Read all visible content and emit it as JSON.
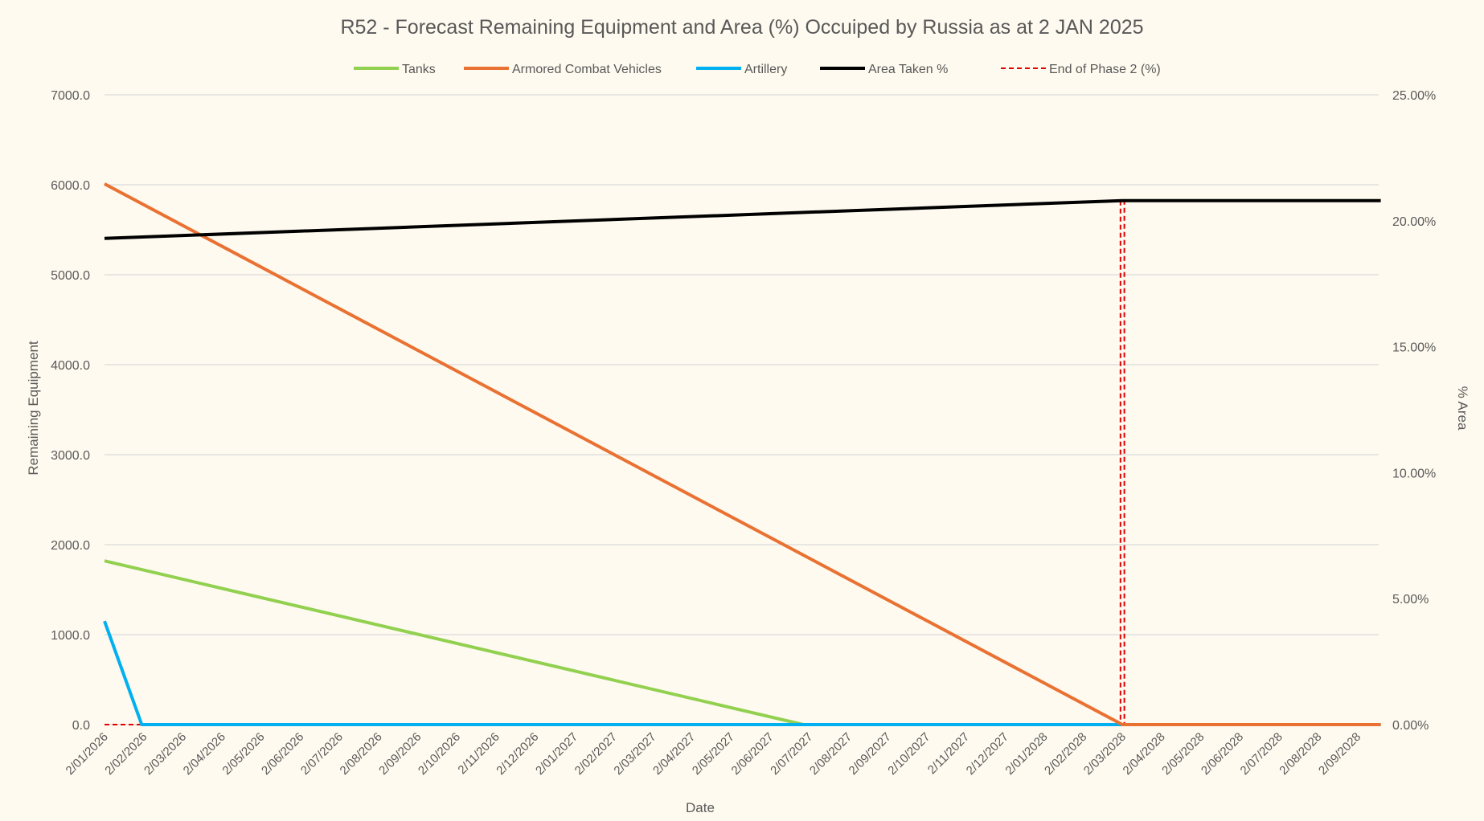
{
  "chart_data": {
    "type": "line",
    "title": "R52 - Forecast Remaining Equipment and Area (%) Occuiped by Russia as at 2 JAN 2025",
    "xlabel": "Date",
    "ylabel": "Remaining Equipment",
    "y2label": "% Area",
    "ylim": [
      0,
      7000
    ],
    "y2lim": [
      0,
      25
    ],
    "y_ticks": [
      "0.0",
      "1000.0",
      "2000.0",
      "3000.0",
      "4000.0",
      "5000.0",
      "6000.0",
      "7000.0"
    ],
    "y2_ticks": [
      "0.00%",
      "5.00%",
      "10.00%",
      "15.00%",
      "20.00%",
      "25.00%"
    ],
    "grid": true,
    "legend_position": "top",
    "x_categories": [
      "2/01/2026",
      "2/02/2026",
      "2/03/2026",
      "2/04/2026",
      "2/05/2026",
      "2/06/2026",
      "2/07/2026",
      "2/08/2026",
      "2/09/2026",
      "2/10/2026",
      "2/11/2026",
      "2/12/2026",
      "2/01/2027",
      "2/02/2027",
      "2/03/2027",
      "2/04/2027",
      "2/05/2027",
      "2/06/2027",
      "2/07/2027",
      "2/08/2027",
      "2/09/2027",
      "2/10/2027",
      "2/11/2027",
      "2/12/2027",
      "2/01/2028",
      "2/02/2028",
      "2/03/2028",
      "2/04/2028",
      "2/05/2028",
      "2/06/2028",
      "2/07/2028",
      "2/08/2028",
      "2/09/2028"
    ],
    "x_end": 32.6,
    "series": [
      {
        "name": "Tanks",
        "axis": "left",
        "color": "#92d050",
        "dash": false,
        "width": 4,
        "points": [
          [
            0,
            1820
          ],
          [
            17.85,
            0
          ],
          [
            32.6,
            0
          ]
        ]
      },
      {
        "name": "Armored Combat Vehicles",
        "axis": "left",
        "color": "#e97132",
        "dash": false,
        "width": 4,
        "points": [
          [
            0,
            6010
          ],
          [
            26.0,
            0
          ],
          [
            32.6,
            0
          ]
        ]
      },
      {
        "name": "Artillery",
        "axis": "left",
        "color": "#00b0f0",
        "dash": false,
        "width": 4,
        "points": [
          [
            0,
            1150
          ],
          [
            0.95,
            0
          ],
          [
            32.6,
            0
          ]
        ]
      },
      {
        "name": "Area Taken %",
        "axis": "right",
        "color": "#000000",
        "dash": false,
        "width": 4,
        "points": [
          [
            0,
            19.3
          ],
          [
            26.0,
            20.8
          ],
          [
            32.6,
            20.8
          ]
        ]
      },
      {
        "name": "End of Phase 2 (%)",
        "axis": "right",
        "color": "#e00000",
        "dash": true,
        "width": 2,
        "points": [
          [
            0,
            0
          ],
          [
            25.95,
            0
          ],
          [
            25.95,
            20.8
          ],
          [
            26.05,
            20.8
          ],
          [
            26.05,
            0
          ],
          [
            32.6,
            0
          ]
        ]
      }
    ]
  }
}
